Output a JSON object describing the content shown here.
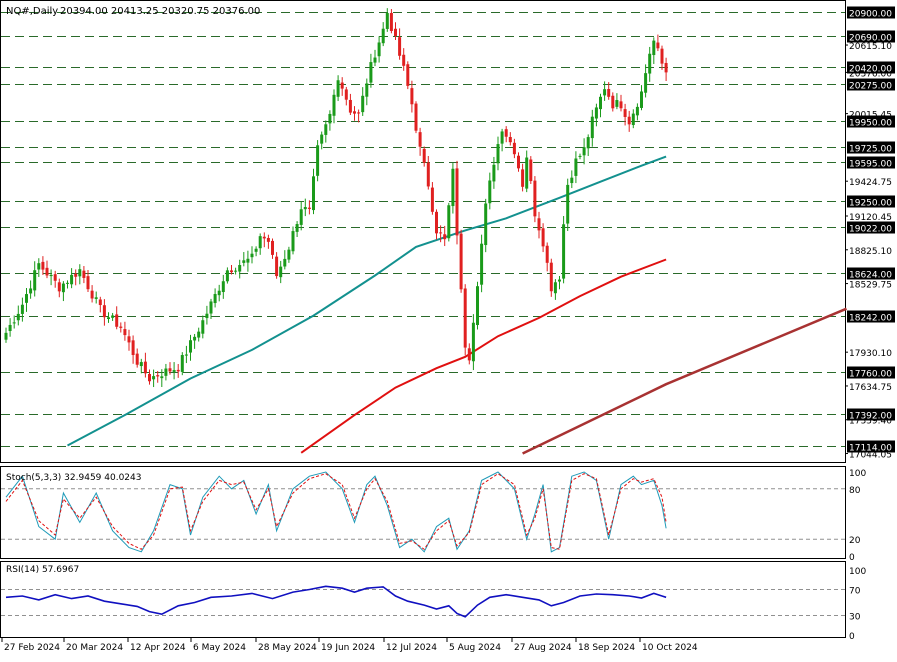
{
  "header": {
    "symbol": "NQ#,Daily",
    "ohlc": "20394.00 20413.25 20320.75 20376.00"
  },
  "colors": {
    "background": "#ffffff",
    "frame": "#000000",
    "up_candle": "#1a9a1a",
    "down_candle": "#e02020",
    "ma_teal": "#13918f",
    "ma_red": "#e01010",
    "ma_brown": "#a83232",
    "level_line": "#2a6a2a",
    "stoch_main": "#1e9ab8",
    "stoch_signal": "#e01010",
    "rsi": "#1010c0",
    "level_box_bg": "#000000",
    "level_box_text": "#ffffff"
  },
  "chart_data": [
    {
      "type": "candlestick",
      "title": "NQ#,Daily",
      "ohlc_last": {
        "open": 20394.0,
        "high": 20413.25,
        "low": 20320.75,
        "close": 20376.0
      },
      "ylim": [
        16970,
        21000
      ],
      "x_labels": [
        "27 Feb 2024",
        "20 Mar 2024",
        "12 Apr 2024",
        "6 May 2024",
        "28 May 2024",
        "19 Jun 2024",
        "12 Jul 2024",
        "5 Aug 2024",
        "27 Aug 2024",
        "18 Sep 2024",
        "10 Oct 2024"
      ],
      "y_ticks": [
        "20615.10",
        "20376.00",
        "20015.45",
        "19424.75",
        "19120.45",
        "18825.10",
        "18529.75",
        "17930.10",
        "17634.75",
        "17339.40",
        "17044.05"
      ],
      "levels": [
        20900.0,
        20690.0,
        20420.0,
        20275.0,
        19950.0,
        19725.0,
        19595.0,
        19250.0,
        19022.0,
        18624.0,
        18242.0,
        17760.0,
        17392.0,
        17114.0
      ],
      "level_labels": [
        "20900.00",
        "20690.00",
        "20420.00",
        "20275.00",
        "19950.00",
        "19725.00",
        "19595.00",
        "19250.00",
        "19022.00",
        "18624.00",
        "18242.00",
        "17760.00",
        "17392.00",
        "17114.00"
      ],
      "close_anchors": [
        [
          0,
          18100
        ],
        [
          4,
          18350
        ],
        [
          8,
          18700
        ],
        [
          13,
          18500
        ],
        [
          18,
          18650
        ],
        [
          23,
          18300
        ],
        [
          28,
          18150
        ],
        [
          32,
          17850
        ],
        [
          35,
          17700
        ],
        [
          38,
          17750
        ],
        [
          42,
          17800
        ],
        [
          48,
          18200
        ],
        [
          54,
          18650
        ],
        [
          60,
          18750
        ],
        [
          62,
          18950
        ],
        [
          64,
          18900
        ],
        [
          66,
          18600
        ],
        [
          69,
          18850
        ],
        [
          72,
          19200
        ],
        [
          74,
          19150
        ],
        [
          76,
          19700
        ],
        [
          79,
          20000
        ],
        [
          81,
          20350
        ],
        [
          84,
          20050
        ],
        [
          86,
          20000
        ],
        [
          88,
          20300
        ],
        [
          90,
          20550
        ],
        [
          92,
          20750
        ],
        [
          93,
          20900
        ],
        [
          95,
          20650
        ],
        [
          97,
          20400
        ],
        [
          99,
          20100
        ],
        [
          101,
          19700
        ],
        [
          103,
          19400
        ],
        [
          105,
          19000
        ],
        [
          107,
          18900
        ],
        [
          109,
          19500
        ],
        [
          111,
          18450
        ],
        [
          112,
          18000
        ],
        [
          113,
          17900
        ],
        [
          115,
          18550
        ],
        [
          117,
          19200
        ],
        [
          119,
          19600
        ],
        [
          121,
          19900
        ],
        [
          124,
          19700
        ],
        [
          126,
          19400
        ],
        [
          127,
          19650
        ],
        [
          129,
          19150
        ],
        [
          131,
          18900
        ],
        [
          133,
          18500
        ],
        [
          135,
          18600
        ],
        [
          136,
          19050
        ],
        [
          137,
          19400
        ],
        [
          139,
          19600
        ],
        [
          141,
          19700
        ],
        [
          143,
          19950
        ],
        [
          146,
          20250
        ],
        [
          148,
          20100
        ],
        [
          150,
          20100
        ],
        [
          152,
          19950
        ],
        [
          155,
          20200
        ],
        [
          157,
          20550
        ],
        [
          158,
          20650
        ],
        [
          160,
          20450
        ],
        [
          161,
          20376
        ]
      ],
      "moving_averages": [
        {
          "id": "ma_teal",
          "points": [
            [
              15,
              17114
            ],
            [
              30,
              17400
            ],
            [
              45,
              17700
            ],
            [
              60,
              17950
            ],
            [
              75,
              18250
            ],
            [
              90,
              18600
            ],
            [
              100,
              18850
            ],
            [
              112,
              18995
            ],
            [
              122,
              19100
            ],
            [
              135,
              19280
            ],
            [
              145,
              19420
            ],
            [
              155,
              19560
            ],
            [
              161,
              19640
            ]
          ]
        },
        {
          "id": "ma_red",
          "points": [
            [
              72,
              17050
            ],
            [
              85,
              17380
            ],
            [
              95,
              17620
            ],
            [
              105,
              17790
            ],
            [
              112,
              17890
            ],
            [
              120,
              18070
            ],
            [
              130,
              18230
            ],
            [
              140,
              18420
            ],
            [
              150,
              18590
            ],
            [
              161,
              18740
            ]
          ]
        },
        {
          "id": "ma_brown",
          "points": [
            [
              126,
              17044
            ],
            [
              161,
              17650
            ],
            [
              205,
              18310
            ]
          ]
        }
      ]
    },
    {
      "type": "line",
      "title": "Stoch(5,3,3) 32.9459 40.0243",
      "ylim": [
        0,
        100
      ],
      "y_ticks": [
        "100",
        "80",
        "20",
        "0"
      ],
      "levels": [
        80,
        20
      ],
      "series": [
        {
          "id": "stoch_main",
          "points": [
            [
              0,
              70
            ],
            [
              4,
              95
            ],
            [
              8,
              35
            ],
            [
              12,
              20
            ],
            [
              14,
              75
            ],
            [
              18,
              40
            ],
            [
              22,
              75
            ],
            [
              26,
              30
            ],
            [
              30,
              10
            ],
            [
              33,
              5
            ],
            [
              36,
              30
            ],
            [
              40,
              85
            ],
            [
              43,
              80
            ],
            [
              45,
              25
            ],
            [
              48,
              70
            ],
            [
              52,
              95
            ],
            [
              55,
              80
            ],
            [
              58,
              90
            ],
            [
              61,
              50
            ],
            [
              64,
              85
            ],
            [
              66,
              30
            ],
            [
              70,
              80
            ],
            [
              74,
              95
            ],
            [
              78,
              100
            ],
            [
              82,
              80
            ],
            [
              85,
              40
            ],
            [
              88,
              85
            ],
            [
              90,
              95
            ],
            [
              93,
              60
            ],
            [
              96,
              10
            ],
            [
              99,
              20
            ],
            [
              102,
              5
            ],
            [
              105,
              35
            ],
            [
              108,
              45
            ],
            [
              110,
              8
            ],
            [
              113,
              30
            ],
            [
              116,
              90
            ],
            [
              120,
              100
            ],
            [
              124,
              80
            ],
            [
              127,
              20
            ],
            [
              129,
              50
            ],
            [
              131,
              85
            ],
            [
              133,
              5
            ],
            [
              135,
              10
            ],
            [
              138,
              95
            ],
            [
              141,
              100
            ],
            [
              144,
              90
            ],
            [
              147,
              20
            ],
            [
              150,
              85
            ],
            [
              153,
              95
            ],
            [
              155,
              85
            ],
            [
              158,
              90
            ],
            [
              160,
              60
            ],
            [
              161,
              33
            ]
          ]
        },
        {
          "id": "stoch_signal",
          "points": [
            [
              0,
              65
            ],
            [
              4,
              90
            ],
            [
              8,
              42
            ],
            [
              12,
              25
            ],
            [
              14,
              68
            ],
            [
              18,
              45
            ],
            [
              22,
              70
            ],
            [
              26,
              35
            ],
            [
              30,
              15
            ],
            [
              33,
              8
            ],
            [
              36,
              25
            ],
            [
              40,
              80
            ],
            [
              43,
              82
            ],
            [
              45,
              30
            ],
            [
              48,
              65
            ],
            [
              52,
              90
            ],
            [
              55,
              85
            ],
            [
              58,
              88
            ],
            [
              61,
              55
            ],
            [
              64,
              80
            ],
            [
              66,
              35
            ],
            [
              70,
              75
            ],
            [
              74,
              92
            ],
            [
              78,
              98
            ],
            [
              82,
              85
            ],
            [
              85,
              45
            ],
            [
              88,
              80
            ],
            [
              90,
              92
            ],
            [
              93,
              65
            ],
            [
              96,
              15
            ],
            [
              99,
              18
            ],
            [
              102,
              8
            ],
            [
              105,
              30
            ],
            [
              108,
              42
            ],
            [
              110,
              12
            ],
            [
              113,
              28
            ],
            [
              116,
              85
            ],
            [
              120,
              98
            ],
            [
              124,
              85
            ],
            [
              127,
              25
            ],
            [
              129,
              45
            ],
            [
              131,
              80
            ],
            [
              133,
              10
            ],
            [
              135,
              8
            ],
            [
              138,
              90
            ],
            [
              141,
              98
            ],
            [
              144,
              92
            ],
            [
              147,
              25
            ],
            [
              150,
              80
            ],
            [
              153,
              92
            ],
            [
              155,
              88
            ],
            [
              158,
              92
            ],
            [
              160,
              70
            ],
            [
              161,
              40
            ]
          ]
        }
      ]
    },
    {
      "type": "line",
      "title": "RSI(14) 57.6967",
      "ylim": [
        0,
        100
      ],
      "y_ticks": [
        "100",
        "70",
        "30",
        "0"
      ],
      "levels": [
        70,
        30
      ],
      "series": [
        {
          "id": "rsi",
          "points": [
            [
              0,
              58
            ],
            [
              4,
              60
            ],
            [
              8,
              54
            ],
            [
              12,
              62
            ],
            [
              16,
              56
            ],
            [
              20,
              60
            ],
            [
              24,
              52
            ],
            [
              28,
              48
            ],
            [
              32,
              44
            ],
            [
              35,
              36
            ],
            [
              38,
              32
            ],
            [
              42,
              45
            ],
            [
              46,
              50
            ],
            [
              50,
              58
            ],
            [
              55,
              60
            ],
            [
              60,
              64
            ],
            [
              65,
              56
            ],
            [
              70,
              66
            ],
            [
              74,
              70
            ],
            [
              78,
              75
            ],
            [
              82,
              72
            ],
            [
              85,
              66
            ],
            [
              88,
              72
            ],
            [
              92,
              74
            ],
            [
              95,
              60
            ],
            [
              98,
              52
            ],
            [
              102,
              46
            ],
            [
              105,
              40
            ],
            [
              108,
              45
            ],
            [
              110,
              33
            ],
            [
              112,
              28
            ],
            [
              115,
              46
            ],
            [
              118,
              58
            ],
            [
              122,
              62
            ],
            [
              126,
              58
            ],
            [
              130,
              54
            ],
            [
              133,
              45
            ],
            [
              136,
              50
            ],
            [
              140,
              60
            ],
            [
              144,
              63
            ],
            [
              148,
              62
            ],
            [
              152,
              60
            ],
            [
              155,
              57
            ],
            [
              158,
              64
            ],
            [
              160,
              60
            ],
            [
              161,
              58
            ]
          ]
        }
      ]
    }
  ]
}
